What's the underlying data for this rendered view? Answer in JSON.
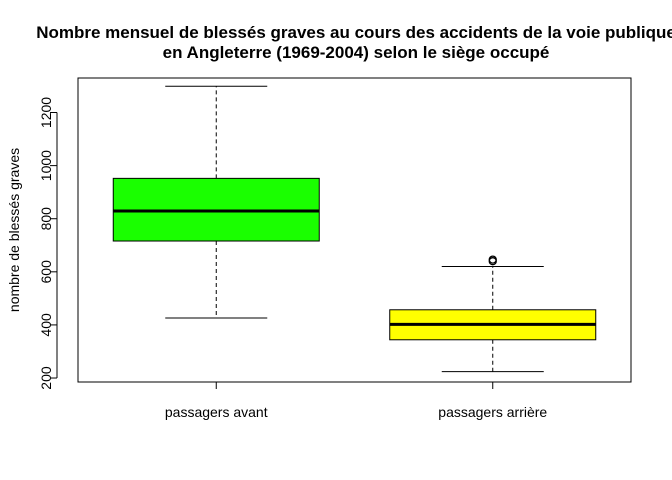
{
  "chart_data": {
    "type": "boxplot",
    "title_line1": "Nombre mensuel de blessés graves au cours des accidents de la voie publique",
    "title_line2": "en Angleterre (1969-2004) selon le siège occupé",
    "xlabel": "",
    "ylabel": "nombre de blessés graves",
    "ylim": [
      185,
      1330
    ],
    "yticks": [
      200,
      400,
      600,
      800,
      1000,
      1200
    ],
    "ytick_labels": [
      "200",
      "400",
      "600",
      "800",
      "1000",
      "1200"
    ],
    "grid": false,
    "categories": [
      "passagers avant",
      "passagers arrière"
    ],
    "boxes": [
      {
        "category": "passagers avant",
        "whisker_low": 426,
        "q1": 716,
        "median": 829,
        "q3": 952,
        "whisker_high": 1299,
        "outliers": [],
        "fill": "#1aff00"
      },
      {
        "category": "passagers arrière",
        "whisker_low": 224,
        "q1": 344,
        "median": 402,
        "q3": 457,
        "whisker_high": 620,
        "outliers": [
          640,
          646
        ],
        "fill": "#ffff00"
      }
    ]
  }
}
